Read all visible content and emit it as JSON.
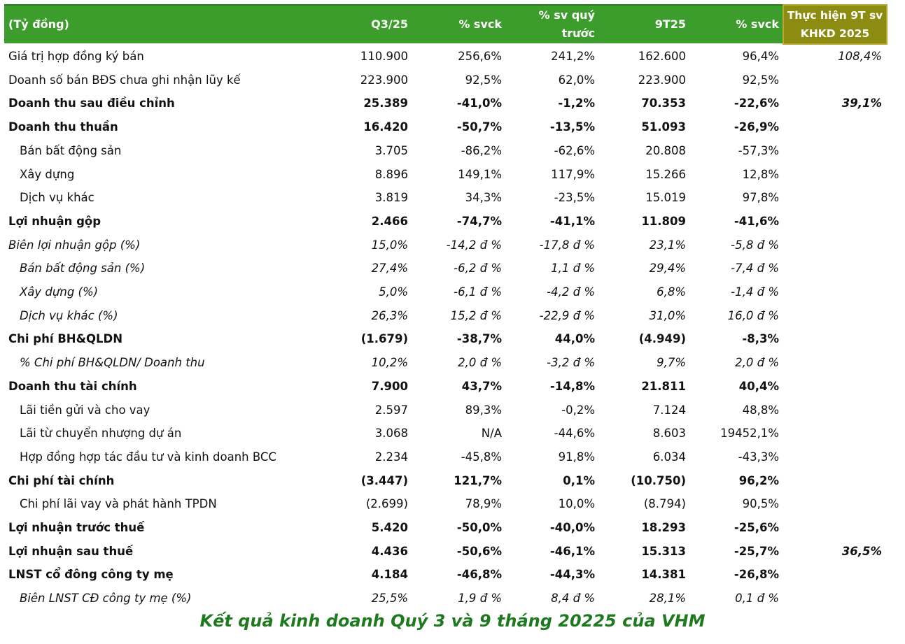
{
  "header": {
    "unit": "(Tỷ đồng)",
    "cols": [
      "Q3/25",
      "% svck",
      "% sv quý\ntrước",
      "9T25",
      "% svck",
      "Thực hiện 9T sv\nKHKD 2025"
    ]
  },
  "rows": [
    {
      "label": "Giá trị hợp đồng ký bán",
      "v": [
        "110.900",
        "256,6%",
        "241,2%",
        "162.600",
        "96,4%",
        "108,4%"
      ],
      "s": ""
    },
    {
      "label": "Doanh số bán BĐS chưa ghi nhận lũy kế",
      "v": [
        "223.900",
        "92,5%",
        "62,0%",
        "223.900",
        "92,5%",
        ""
      ],
      "s": ""
    },
    {
      "label": "Doanh thu sau điều chỉnh",
      "v": [
        "25.389",
        "-41,0%",
        "-1,2%",
        "70.353",
        "-22,6%",
        "39,1%"
      ],
      "s": "bold"
    },
    {
      "label": "Doanh thu thuần",
      "v": [
        "16.420",
        "-50,7%",
        "-13,5%",
        "51.093",
        "-26,9%",
        ""
      ],
      "s": "bold"
    },
    {
      "label": "Bán bất động sản",
      "v": [
        "3.705",
        "-86,2%",
        "-62,6%",
        "20.808",
        "-57,3%",
        ""
      ],
      "s": "ind"
    },
    {
      "label": "Xây dựng",
      "v": [
        "8.896",
        "149,1%",
        "117,9%",
        "15.266",
        "12,8%",
        ""
      ],
      "s": "ind"
    },
    {
      "label": "Dịch vụ khác",
      "v": [
        "3.819",
        "34,3%",
        "-23,5%",
        "15.019",
        "97,8%",
        ""
      ],
      "s": "ind"
    },
    {
      "label": "Lợi nhuận gộp",
      "v": [
        "2.466",
        "-74,7%",
        "-41,1%",
        "11.809",
        "-41,6%",
        ""
      ],
      "s": "bold"
    },
    {
      "label": "Biên lợi nhuận gộp (%)",
      "v": [
        "15,0%",
        "-14,2 đ %",
        "-17,8 đ %",
        "23,1%",
        "-5,8 đ %",
        ""
      ],
      "s": "ital"
    },
    {
      "label": "Bán bất động sản (%)",
      "v": [
        "27,4%",
        "-6,2 đ %",
        "1,1 đ %",
        "29,4%",
        "-7,4 đ %",
        ""
      ],
      "s": "ital ind"
    },
    {
      "label": "Xây dựng (%)",
      "v": [
        "5,0%",
        "-6,1 đ %",
        "-4,2 đ %",
        "6,8%",
        "-1,4 đ %",
        ""
      ],
      "s": "ital ind"
    },
    {
      "label": "Dịch vụ khác (%)",
      "v": [
        "26,3%",
        "15,2 đ %",
        "-22,9 đ %",
        "31,0%",
        "16,0 đ %",
        ""
      ],
      "s": "ital ind"
    },
    {
      "label": "Chi phí BH&QLDN",
      "v": [
        "(1.679)",
        "-38,7%",
        "44,0%",
        "(4.949)",
        "-8,3%",
        ""
      ],
      "s": "bold"
    },
    {
      "label": "% Chi phí BH&QLDN/ Doanh thu",
      "v": [
        "10,2%",
        "2,0 đ %",
        "-3,2 đ %",
        "9,7%",
        "2,0 đ %",
        ""
      ],
      "s": "ital ind"
    },
    {
      "label": "Doanh thu tài chính",
      "v": [
        "7.900",
        "43,7%",
        "-14,8%",
        "21.811",
        "40,4%",
        ""
      ],
      "s": "bold"
    },
    {
      "label": "Lãi tiền gửi và cho vay",
      "v": [
        "2.597",
        "89,3%",
        "-0,2%",
        "7.124",
        "48,8%",
        ""
      ],
      "s": "ind"
    },
    {
      "label": "Lãi từ chuyển nhượng dự án",
      "v": [
        "3.068",
        "N/A",
        "-44,6%",
        "8.603",
        "19452,1%",
        ""
      ],
      "s": "ind"
    },
    {
      "label": "Hợp đồng hợp tác đầu tư và kinh doanh BCC",
      "v": [
        "2.234",
        "-45,8%",
        "91,8%",
        "6.034",
        "-43,3%",
        ""
      ],
      "s": "ind"
    },
    {
      "label": "Chi phí tài chính",
      "v": [
        "(3.447)",
        "121,7%",
        "0,1%",
        "(10.750)",
        "96,2%",
        ""
      ],
      "s": "bold"
    },
    {
      "label": "Chi phí lãi vay và phát hành TPDN",
      "v": [
        "(2.699)",
        "78,9%",
        "10,0%",
        "(8.794)",
        "90,5%",
        ""
      ],
      "s": "ind"
    },
    {
      "label": "Lợi nhuận trước thuế",
      "v": [
        "5.420",
        "-50,0%",
        "-40,0%",
        "18.293",
        "-25,6%",
        ""
      ],
      "s": "bold"
    },
    {
      "label": "Lợi nhuận sau thuế",
      "v": [
        "4.436",
        "-50,6%",
        "-46,1%",
        "15.313",
        "-25,7%",
        "36,5%"
      ],
      "s": "bold"
    },
    {
      "label": "LNST cổ đông công ty mẹ",
      "v": [
        "4.184",
        "-46,8%",
        "-44,3%",
        "14.381",
        "-26,8%",
        ""
      ],
      "s": "bold"
    },
    {
      "label": "Biên LNST CĐ công ty mẹ (%)",
      "v": [
        "25,5%",
        "1,9 đ %",
        "8,4 đ %",
        "28,1%",
        "0,1 đ %",
        ""
      ],
      "s": "ital ind"
    }
  ],
  "caption": "Kết quả kinh doanh Quý 3 và 9 tháng 20225 của VHM"
}
